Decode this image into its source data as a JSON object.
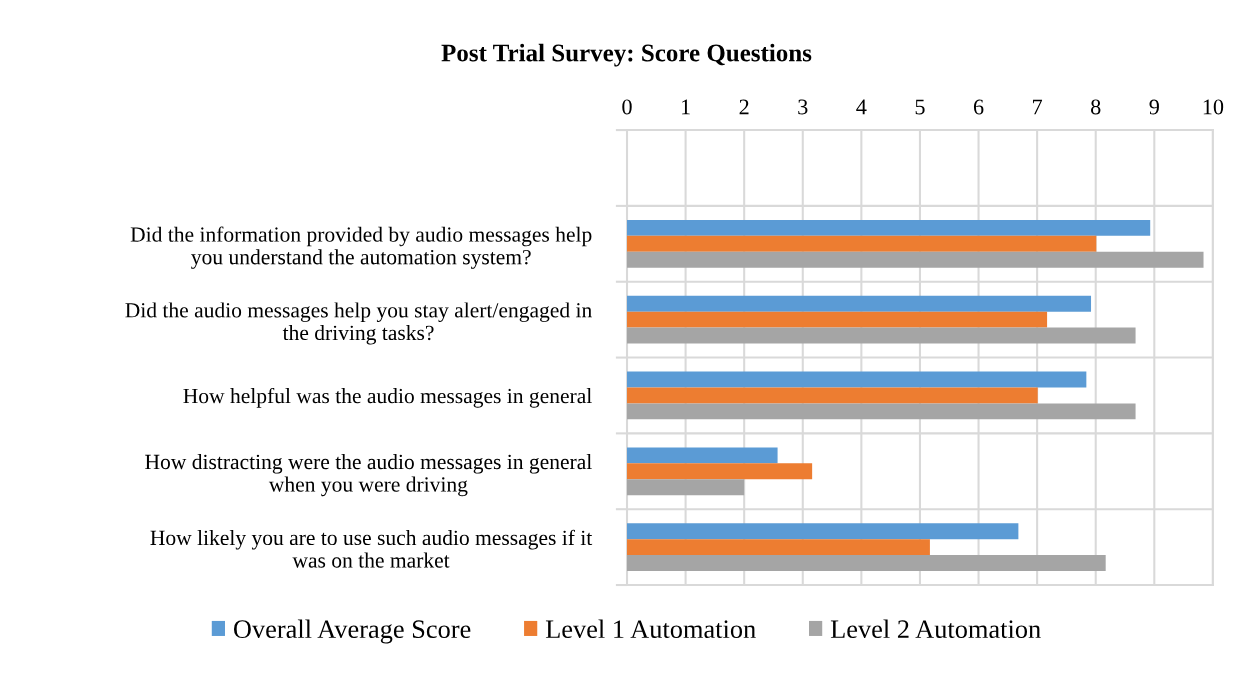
{
  "chart_data": {
    "type": "bar",
    "orientation": "horizontal",
    "title": "Post Trial Survey: Score Questions",
    "categories": [
      null,
      "Did the information provided by audio messages help\nyou understand the automation system?",
      "Did the audio messages help you stay alert/engaged in\nthe driving tasks?",
      "How helpful was the audio messages in general",
      "How distracting were the audio messages in general\nwhen you were driving",
      "How likely you are to use such audio messages if it\nwas on the market"
    ],
    "series": [
      {
        "name": "Overall Average Score",
        "color": "#5b9bd5",
        "values": [
          null,
          8.93,
          7.92,
          7.84,
          2.57,
          6.68
        ]
      },
      {
        "name": "Level 1 Automation",
        "color": "#ed7d31",
        "values": [
          null,
          8.01,
          7.17,
          7.01,
          3.16,
          5.17
        ]
      },
      {
        "name": "Level 2 Automation",
        "color": "#a5a5a5",
        "values": [
          null,
          9.84,
          8.68,
          8.68,
          2.0,
          8.17
        ]
      }
    ],
    "xlim": [
      0,
      10
    ],
    "xticks": [
      0,
      1,
      2,
      3,
      4,
      5,
      6,
      7,
      8,
      9,
      10
    ],
    "grid": true,
    "legend": "bottom"
  }
}
